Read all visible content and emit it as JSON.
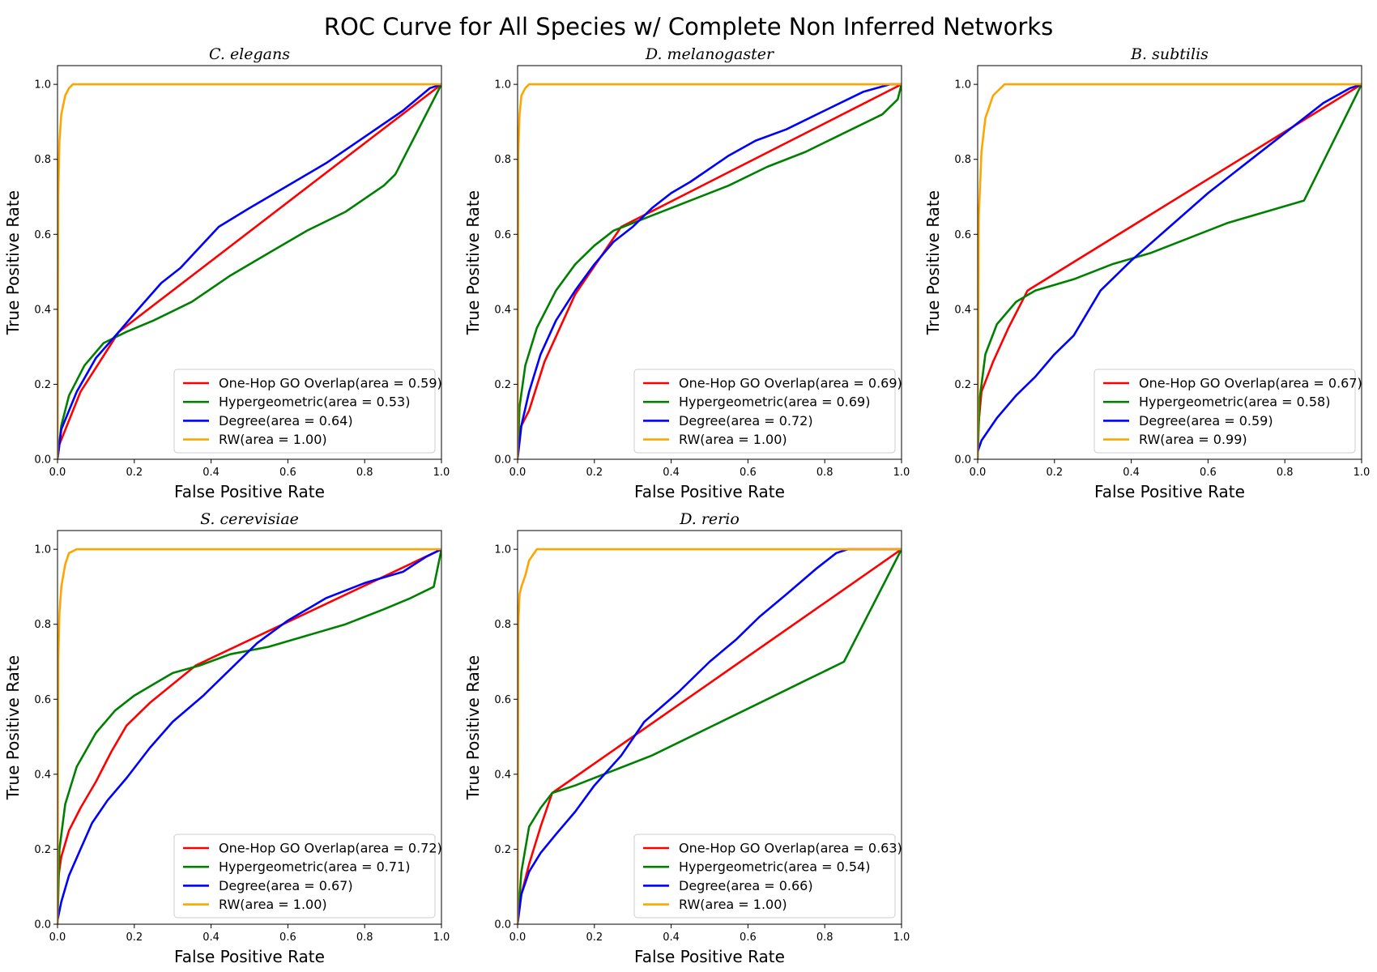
{
  "figure": {
    "title": "ROC Curve for All Species w/ Complete Non Inferred Networks"
  },
  "colors": {
    "one_hop": "#ff0000",
    "hypergeometric": "#008000",
    "degree": "#0000ff",
    "rw": "#ffa500"
  },
  "chart_data": [
    {
      "type": "line",
      "title": "C. elegans",
      "xlabel": "False Positive Rate",
      "ylabel": "True Positive Rate",
      "xlim": [
        0,
        1
      ],
      "ylim": [
        0,
        1.05
      ],
      "ticks": [
        "0.0",
        "0.2",
        "0.4",
        "0.6",
        "0.8",
        "1.0"
      ],
      "legend_position": "lower right",
      "series": [
        {
          "name": "One-Hop GO Overlap(area = 0.59)",
          "color": "#ff0000",
          "x": [
            0,
            0.005,
            0.06,
            0.16,
            1.0
          ],
          "y": [
            0,
            0.04,
            0.18,
            0.34,
            1.0
          ]
        },
        {
          "name": "Hypergeometric(area = 0.53)",
          "color": "#008000",
          "x": [
            0,
            0.01,
            0.03,
            0.07,
            0.12,
            0.18,
            0.25,
            0.35,
            0.45,
            0.55,
            0.65,
            0.75,
            0.85,
            0.88,
            1.0
          ],
          "y": [
            0,
            0.09,
            0.17,
            0.25,
            0.31,
            0.34,
            0.37,
            0.42,
            0.49,
            0.55,
            0.61,
            0.66,
            0.73,
            0.76,
            1.0
          ]
        },
        {
          "name": "Degree(area = 0.64)",
          "color": "#0000ff",
          "x": [
            0,
            0.01,
            0.05,
            0.1,
            0.16,
            0.21,
            0.27,
            0.32,
            0.42,
            0.5,
            0.6,
            0.7,
            0.8,
            0.9,
            0.97,
            1.0
          ],
          "y": [
            0,
            0.08,
            0.18,
            0.27,
            0.34,
            0.4,
            0.47,
            0.51,
            0.62,
            0.67,
            0.73,
            0.79,
            0.86,
            0.93,
            0.99,
            1.0
          ]
        },
        {
          "name": "RW(area = 1.00)",
          "color": "#ffa500",
          "x": [
            0,
            0.002,
            0.005,
            0.01,
            0.02,
            0.03,
            0.04,
            1.0
          ],
          "y": [
            0,
            0.7,
            0.85,
            0.92,
            0.97,
            0.99,
            1.0,
            1.0
          ]
        }
      ]
    },
    {
      "type": "line",
      "title": "D. melanogaster",
      "xlabel": "False Positive Rate",
      "ylabel": "True Positive Rate",
      "xlim": [
        0,
        1
      ],
      "ylim": [
        0,
        1.05
      ],
      "ticks": [
        "0.0",
        "0.2",
        "0.4",
        "0.6",
        "0.8",
        "1.0"
      ],
      "legend_position": "lower right",
      "series": [
        {
          "name": "One-Hop GO Overlap(area = 0.69)",
          "color": "#ff0000",
          "x": [
            0,
            0.005,
            0.03,
            0.07,
            0.15,
            0.27,
            1.0
          ],
          "y": [
            0,
            0.08,
            0.13,
            0.26,
            0.44,
            0.62,
            1.0
          ]
        },
        {
          "name": "Hypergeometric(area = 0.69)",
          "color": "#008000",
          "x": [
            0,
            0.005,
            0.02,
            0.05,
            0.1,
            0.15,
            0.2,
            0.25,
            0.3,
            0.35,
            0.45,
            0.55,
            0.65,
            0.75,
            0.85,
            0.95,
            0.99,
            1.0
          ],
          "y": [
            0,
            0.14,
            0.25,
            0.35,
            0.45,
            0.52,
            0.57,
            0.61,
            0.63,
            0.65,
            0.69,
            0.73,
            0.78,
            0.82,
            0.87,
            0.92,
            0.96,
            1.0
          ]
        },
        {
          "name": "Degree(area = 0.72)",
          "color": "#0000ff",
          "x": [
            0,
            0.01,
            0.03,
            0.06,
            0.1,
            0.15,
            0.2,
            0.25,
            0.3,
            0.35,
            0.4,
            0.45,
            0.55,
            0.62,
            0.7,
            0.8,
            0.9,
            0.97,
            1.0
          ],
          "y": [
            0,
            0.09,
            0.18,
            0.28,
            0.37,
            0.45,
            0.52,
            0.58,
            0.62,
            0.67,
            0.71,
            0.74,
            0.81,
            0.85,
            0.88,
            0.93,
            0.98,
            1.0,
            1.0
          ]
        },
        {
          "name": "RW(area = 1.00)",
          "color": "#ffa500",
          "x": [
            0,
            0.002,
            0.005,
            0.01,
            0.02,
            0.03,
            1.0
          ],
          "y": [
            0,
            0.82,
            0.92,
            0.97,
            0.99,
            1.0,
            1.0
          ]
        }
      ]
    },
    {
      "type": "line",
      "title": "B. subtilis",
      "xlabel": "False Positive Rate",
      "ylabel": "True Positive Rate",
      "xlim": [
        0,
        1
      ],
      "ylim": [
        0,
        1.05
      ],
      "ticks": [
        "0.0",
        "0.2",
        "0.4",
        "0.6",
        "0.8",
        "1.0"
      ],
      "legend_position": "lower right",
      "series": [
        {
          "name": "One-Hop GO Overlap(area = 0.67)",
          "color": "#ff0000",
          "x": [
            0,
            0.01,
            0.04,
            0.08,
            0.13,
            1.0
          ],
          "y": [
            0.07,
            0.18,
            0.26,
            0.35,
            0.45,
            1.0
          ]
        },
        {
          "name": "Hypergeometric(area = 0.58)",
          "color": "#008000",
          "x": [
            0,
            0.005,
            0.02,
            0.05,
            0.1,
            0.15,
            0.25,
            0.35,
            0.45,
            0.55,
            0.65,
            0.75,
            0.85,
            1.0
          ],
          "y": [
            0,
            0.16,
            0.28,
            0.36,
            0.42,
            0.45,
            0.48,
            0.52,
            0.55,
            0.59,
            0.63,
            0.66,
            0.69,
            1.0
          ]
        },
        {
          "name": "Degree(area = 0.59)",
          "color": "#0000ff",
          "x": [
            0,
            0.01,
            0.05,
            0.1,
            0.15,
            0.2,
            0.25,
            0.32,
            0.4,
            0.5,
            0.6,
            0.7,
            0.8,
            0.9,
            0.97,
            1.0
          ],
          "y": [
            0.02,
            0.05,
            0.11,
            0.17,
            0.22,
            0.28,
            0.33,
            0.45,
            0.53,
            0.62,
            0.71,
            0.79,
            0.87,
            0.95,
            0.99,
            1.0
          ]
        },
        {
          "name": "RW(area = 0.99)",
          "color": "#ffa500",
          "x": [
            0,
            0.003,
            0.01,
            0.02,
            0.04,
            0.07,
            1.0
          ],
          "y": [
            0,
            0.65,
            0.82,
            0.91,
            0.97,
            1.0,
            1.0
          ]
        }
      ]
    },
    {
      "type": "line",
      "title": "S. cerevisiae",
      "xlabel": "False Positive Rate",
      "ylabel": "True Positive Rate",
      "xlim": [
        0,
        1
      ],
      "ylim": [
        0,
        1.05
      ],
      "ticks": [
        "0.0",
        "0.2",
        "0.4",
        "0.6",
        "0.8",
        "1.0"
      ],
      "legend_position": "lower right",
      "series": [
        {
          "name": "One-Hop GO Overlap(area = 0.72)",
          "color": "#ff0000",
          "x": [
            0,
            0.01,
            0.03,
            0.06,
            0.1,
            0.14,
            0.18,
            0.24,
            0.3,
            0.36,
            1.0
          ],
          "y": [
            0.11,
            0.18,
            0.25,
            0.31,
            0.38,
            0.46,
            0.53,
            0.59,
            0.64,
            0.69,
            1.0
          ]
        },
        {
          "name": "Hypergeometric(area = 0.71)",
          "color": "#008000",
          "x": [
            0,
            0.005,
            0.02,
            0.05,
            0.1,
            0.15,
            0.2,
            0.25,
            0.3,
            0.37,
            0.45,
            0.55,
            0.65,
            0.75,
            0.85,
            0.92,
            0.98,
            1.0
          ],
          "y": [
            0,
            0.2,
            0.32,
            0.42,
            0.51,
            0.57,
            0.61,
            0.64,
            0.67,
            0.69,
            0.72,
            0.74,
            0.77,
            0.8,
            0.84,
            0.87,
            0.9,
            1.0
          ]
        },
        {
          "name": "Degree(area = 0.67)",
          "color": "#0000ff",
          "x": [
            0,
            0.01,
            0.03,
            0.06,
            0.09,
            0.13,
            0.18,
            0.24,
            0.3,
            0.38,
            0.45,
            0.52,
            0.6,
            0.7,
            0.8,
            0.9,
            0.96,
            1.0
          ],
          "y": [
            0.01,
            0.06,
            0.13,
            0.2,
            0.27,
            0.33,
            0.39,
            0.47,
            0.54,
            0.61,
            0.68,
            0.75,
            0.81,
            0.87,
            0.91,
            0.94,
            0.98,
            1.0
          ]
        },
        {
          "name": "RW(area = 1.00)",
          "color": "#ffa500",
          "x": [
            0,
            0.002,
            0.005,
            0.01,
            0.02,
            0.03,
            0.05,
            1.0
          ],
          "y": [
            0,
            0.7,
            0.83,
            0.9,
            0.96,
            0.99,
            1.0,
            1.0
          ]
        }
      ]
    },
    {
      "type": "line",
      "title": "D. rerio",
      "xlabel": "False Positive Rate",
      "ylabel": "True Positive Rate",
      "xlim": [
        0,
        1
      ],
      "ylim": [
        0,
        1.05
      ],
      "ticks": [
        "0.0",
        "0.2",
        "0.4",
        "0.6",
        "0.8",
        "1.0"
      ],
      "legend_position": "lower right",
      "series": [
        {
          "name": "One-Hop GO Overlap(area = 0.63)",
          "color": "#ff0000",
          "x": [
            0,
            0.01,
            0.03,
            0.06,
            0.09,
            1.0
          ],
          "y": [
            0.02,
            0.08,
            0.16,
            0.26,
            0.35,
            1.0
          ]
        },
        {
          "name": "Hypergeometric(area = 0.54)",
          "color": "#008000",
          "x": [
            0,
            0.01,
            0.03,
            0.06,
            0.09,
            0.15,
            0.25,
            0.35,
            0.45,
            0.55,
            0.65,
            0.75,
            0.85,
            1.0
          ],
          "y": [
            0,
            0.14,
            0.26,
            0.31,
            0.35,
            0.37,
            0.41,
            0.45,
            0.5,
            0.55,
            0.6,
            0.65,
            0.7,
            1.0
          ]
        },
        {
          "name": "Degree(area = 0.66)",
          "color": "#0000ff",
          "x": [
            0,
            0.01,
            0.03,
            0.06,
            0.1,
            0.15,
            0.2,
            0.27,
            0.33,
            0.42,
            0.5,
            0.57,
            0.63,
            0.7,
            0.78,
            0.83,
            0.86,
            1.0
          ],
          "y": [
            0,
            0.08,
            0.14,
            0.19,
            0.24,
            0.3,
            0.37,
            0.45,
            0.54,
            0.62,
            0.7,
            0.76,
            0.82,
            0.88,
            0.95,
            0.99,
            1.0,
            1.0
          ]
        },
        {
          "name": "RW(area = 1.00)",
          "color": "#ffa500",
          "x": [
            0,
            0.002,
            0.005,
            0.01,
            0.02,
            0.03,
            0.05,
            1.0
          ],
          "y": [
            0,
            0.8,
            0.88,
            0.9,
            0.93,
            0.97,
            1.0,
            1.0
          ]
        }
      ]
    }
  ]
}
